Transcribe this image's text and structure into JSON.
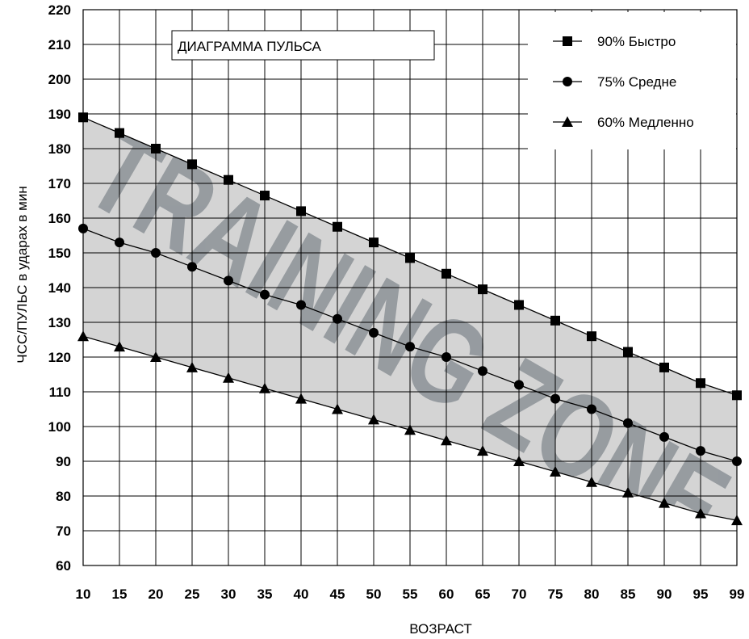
{
  "chart_data": {
    "type": "line",
    "title": "ДИАГРАММА ПУЛЬСА",
    "xlabel": "ВОЗРАСТ",
    "ylabel": "ЧСС/ПУЛЬС в ударах в мин",
    "categories": [
      "10",
      "15",
      "20",
      "25",
      "30",
      "35",
      "40",
      "45",
      "50",
      "55",
      "60",
      "65",
      "70",
      "75",
      "80",
      "85",
      "90",
      "95",
      "99"
    ],
    "ylim": [
      60,
      220
    ],
    "yticks": [
      "60",
      "70",
      "80",
      "90",
      "100",
      "110",
      "120",
      "130",
      "140",
      "150",
      "160",
      "170",
      "180",
      "190",
      "200",
      "210",
      "220"
    ],
    "grid": true,
    "legend_position": "top-right",
    "shaded_zone": "between 60% and 90% series",
    "watermark": "TRAINING ZONE",
    "series": [
      {
        "name": "90% Быстро",
        "marker": "square",
        "values": [
          189,
          184.5,
          180,
          175.5,
          171,
          166.5,
          162,
          157.5,
          153,
          148.5,
          144,
          139.5,
          135,
          130.5,
          126,
          121.5,
          117,
          112.5,
          109
        ]
      },
      {
        "name": "75% Средне",
        "marker": "circle",
        "values": [
          157,
          153,
          150,
          146,
          142,
          138,
          135,
          131,
          127,
          123,
          120,
          116,
          112,
          108,
          105,
          101,
          97,
          93,
          90
        ]
      },
      {
        "name": "60% Медленно",
        "marker": "triangle",
        "values": [
          126,
          123,
          120,
          117,
          114,
          111,
          108,
          105,
          102,
          99,
          96,
          93,
          90,
          87,
          84,
          81,
          78,
          75,
          73
        ]
      }
    ]
  },
  "colors": {
    "zone_fill": "#d4d4d4",
    "watermark": "#8c9297",
    "line": "#000000"
  }
}
